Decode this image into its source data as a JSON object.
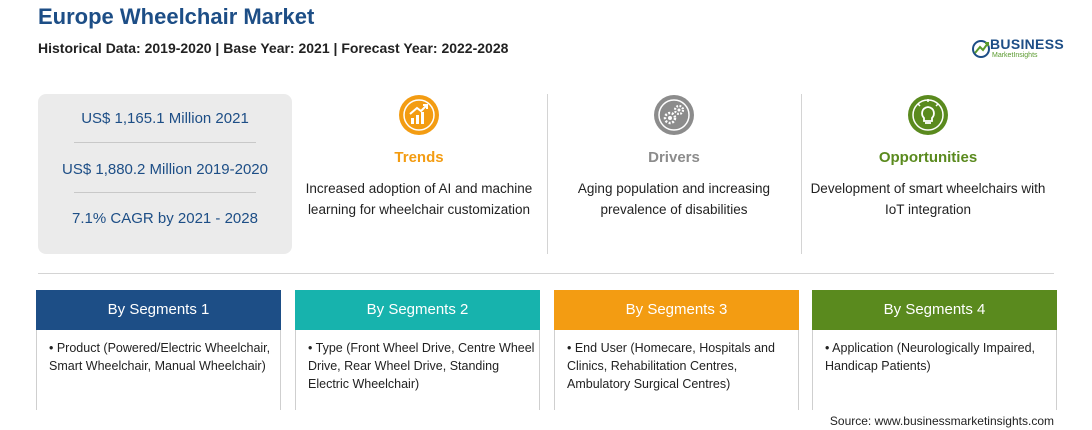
{
  "header": {
    "title": "Europe Wheelchair Market",
    "subtitle": "Historical Data: 2019-2020 | Base Year: 2021 | Forecast Year: 2022-2028"
  },
  "logo": {
    "name": "BUSINESS",
    "tagline": "MarketInsights"
  },
  "stats": [
    "US$ 1,165.1 Million 2021",
    "US$ 1,880.2 Million 2019-2020",
    "7.1% CAGR by 2021 - 2028"
  ],
  "features": [
    {
      "title": "Trends",
      "text": "Increased adoption of AI and machine learning for wheelchair customization",
      "icon": "chart-growth-icon",
      "color": "#f39c12"
    },
    {
      "title": "Drivers",
      "text": "Aging population and increasing prevalence of disabilities",
      "icon": "gears-icon",
      "color": "#8c8c8c"
    },
    {
      "title": "Opportunities",
      "text": "Development of smart wheelchairs with IoT integration",
      "icon": "lightbulb-icon",
      "color": "#5a8a1e"
    }
  ],
  "segments": [
    {
      "title": "By Segments 1",
      "text": "• Product (Powered/Electric Wheelchair, Smart Wheelchair, Manual Wheelchair)",
      "color": "#1d4e86"
    },
    {
      "title": "By Segments 2",
      "text": "• Type (Front Wheel Drive, Centre Wheel Drive, Rear Wheel Drive, Standing Electric Wheelchair)",
      "color": "#17b3ad"
    },
    {
      "title": "By Segments 3",
      "text": "• End User (Homecare, Hospitals and Clinics, Rehabilitation Centres, Ambulatory Surgical Centres)",
      "color": "#f39c12"
    },
    {
      "title": "By Segments 4",
      "text": "• Application (Neurologically Impaired, Handicap Patients)",
      "color": "#5a8a1e"
    }
  ],
  "source": "Source: www.businessmarketinsights.com"
}
